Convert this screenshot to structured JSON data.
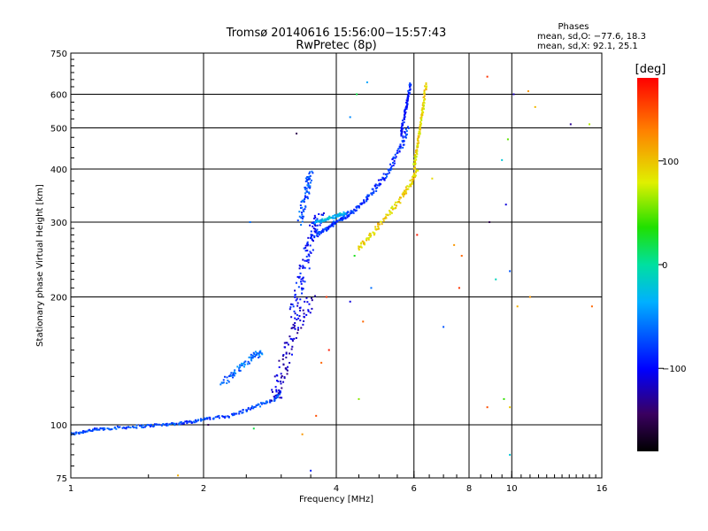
{
  "chart_data": {
    "type": "scatter",
    "title": "Tromsø 20140616 15:56:00−15:57:43",
    "subtitle": "RwPretec (8p)",
    "xlabel": "Frequency [MHz]",
    "ylabel": "Stationary phase Virtual Height [km]",
    "x_scale": "log",
    "y_scale": "log",
    "xlim": [
      1,
      16
    ],
    "ylim": [
      75,
      750
    ],
    "x_ticks": [
      1,
      2,
      4,
      6,
      8,
      10,
      16
    ],
    "y_ticks": [
      75,
      100,
      200,
      300,
      400,
      500,
      600,
      750
    ],
    "x_gridlines": [
      2,
      4,
      6,
      8,
      10
    ],
    "y_gridlines": [
      100,
      200,
      300,
      400,
      500,
      600
    ],
    "stats": {
      "header": "Phases",
      "line_o": "mean, sd,O: −77.6, 18.3",
      "line_x": "mean, sd,X:  92.1, 25.1"
    },
    "colorbar": {
      "label": "[deg]",
      "range": [
        -180,
        180
      ],
      "ticks": [
        {
          "value": 100,
          "label": "100"
        },
        {
          "value": 0,
          "label": "0"
        },
        {
          "value": -100,
          "label": "−100"
        }
      ]
    },
    "traces": [
      {
        "x": [
          1.0,
          1.1,
          1.2,
          1.4,
          1.6,
          1.8,
          2.0,
          2.3,
          2.6,
          2.9,
          3.0
        ],
        "y": [
          95,
          97,
          98,
          99,
          100,
          101,
          103,
          105,
          110,
          115,
          120
        ],
        "phase": -75,
        "spread": 0.015
      },
      {
        "x": [
          2.2,
          2.4,
          2.6,
          2.7
        ],
        "y": [
          125,
          135,
          145,
          148
        ],
        "phase": -60,
        "spread": 0.03
      },
      {
        "x": [
          2.9,
          3.0,
          3.1,
          3.3,
          3.5
        ],
        "y": [
          115,
          130,
          150,
          175,
          200
        ],
        "phase": -115,
        "spread": 0.06
      },
      {
        "x": [
          3.2,
          3.3,
          3.4,
          3.5,
          3.6,
          3.7
        ],
        "y": [
          180,
          210,
          240,
          270,
          300,
          310
        ],
        "phase": -95,
        "spread": 0.05
      },
      {
        "x": [
          3.3,
          3.4,
          3.45,
          3.5
        ],
        "y": [
          300,
          340,
          370,
          390
        ],
        "phase": -70,
        "spread": 0.03
      },
      {
        "x": [
          3.6,
          3.8,
          4.0,
          4.2,
          4.4
        ],
        "y": [
          280,
          290,
          300,
          310,
          320
        ],
        "phase": -80,
        "spread": 0.02
      },
      {
        "x": [
          4.4,
          4.7,
          5.0,
          5.3,
          5.6,
          5.8
        ],
        "y": [
          320,
          340,
          370,
          400,
          450,
          500
        ],
        "phase": -85,
        "spread": 0.02
      },
      {
        "x": [
          5.6,
          5.7,
          5.8,
          5.9
        ],
        "y": [
          480,
          530,
          580,
          640
        ],
        "phase": -90,
        "spread": 0.01
      },
      {
        "x": [
          4.5,
          4.8,
          5.2,
          5.6,
          5.9,
          6.1
        ],
        "y": [
          260,
          280,
          310,
          340,
          370,
          400
        ],
        "phase": 95,
        "spread": 0.02
      },
      {
        "x": [
          6.0,
          6.1,
          6.2,
          6.3,
          6.4
        ],
        "y": [
          400,
          450,
          500,
          560,
          640
        ],
        "phase": 90,
        "spread": 0.01
      },
      {
        "x": [
          3.6,
          3.8,
          4.0,
          4.2
        ],
        "y": [
          300,
          305,
          310,
          315
        ],
        "phase": -30,
        "spread": 0.015
      }
    ],
    "scatter_points": [
      {
        "x": 1.75,
        "y": 76,
        "phase": 110
      },
      {
        "x": 3.25,
        "y": 485,
        "phase": -150
      },
      {
        "x": 4.45,
        "y": 600,
        "phase": 20
      },
      {
        "x": 4.7,
        "y": 640,
        "phase": -40
      },
      {
        "x": 4.3,
        "y": 530,
        "phase": -50
      },
      {
        "x": 8.8,
        "y": 660,
        "phase": 160
      },
      {
        "x": 10.1,
        "y": 600,
        "phase": -120
      },
      {
        "x": 10.9,
        "y": 610,
        "phase": 120
      },
      {
        "x": 11.3,
        "y": 560,
        "phase": 105
      },
      {
        "x": 13.6,
        "y": 510,
        "phase": -130
      },
      {
        "x": 15.0,
        "y": 510,
        "phase": 70
      },
      {
        "x": 9.8,
        "y": 470,
        "phase": 50
      },
      {
        "x": 9.5,
        "y": 420,
        "phase": -20
      },
      {
        "x": 8.9,
        "y": 300,
        "phase": -150
      },
      {
        "x": 9.7,
        "y": 330,
        "phase": -110
      },
      {
        "x": 9.9,
        "y": 230,
        "phase": -70
      },
      {
        "x": 9.2,
        "y": 220,
        "phase": -10
      },
      {
        "x": 10.3,
        "y": 190,
        "phase": 110
      },
      {
        "x": 11.0,
        "y": 200,
        "phase": 120
      },
      {
        "x": 15.2,
        "y": 190,
        "phase": 140
      },
      {
        "x": 9.6,
        "y": 115,
        "phase": 40
      },
      {
        "x": 9.9,
        "y": 110,
        "phase": 100
      },
      {
        "x": 9.9,
        "y": 85,
        "phase": -20
      },
      {
        "x": 8.8,
        "y": 110,
        "phase": 150
      },
      {
        "x": 7.7,
        "y": 250,
        "phase": 140
      },
      {
        "x": 7.6,
        "y": 210,
        "phase": 160
      },
      {
        "x": 7.4,
        "y": 265,
        "phase": 120
      },
      {
        "x": 7.0,
        "y": 170,
        "phase": -70
      },
      {
        "x": 6.1,
        "y": 280,
        "phase": 170
      },
      {
        "x": 6.6,
        "y": 380,
        "phase": 90
      },
      {
        "x": 3.8,
        "y": 200,
        "phase": 160
      },
      {
        "x": 3.85,
        "y": 150,
        "phase": 170
      },
      {
        "x": 3.7,
        "y": 140,
        "phase": 140
      },
      {
        "x": 3.6,
        "y": 105,
        "phase": 150
      },
      {
        "x": 3.35,
        "y": 95,
        "phase": 120
      },
      {
        "x": 3.5,
        "y": 78,
        "phase": -90
      },
      {
        "x": 4.4,
        "y": 250,
        "phase": 30
      },
      {
        "x": 4.8,
        "y": 210,
        "phase": -60
      },
      {
        "x": 4.3,
        "y": 195,
        "phase": -110
      },
      {
        "x": 4.6,
        "y": 175,
        "phase": 140
      },
      {
        "x": 4.5,
        "y": 115,
        "phase": 60
      },
      {
        "x": 2.55,
        "y": 300,
        "phase": -60
      },
      {
        "x": 2.6,
        "y": 98,
        "phase": 20
      },
      {
        "x": 2.05,
        "y": 100,
        "phase": -150
      }
    ]
  }
}
